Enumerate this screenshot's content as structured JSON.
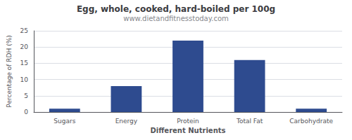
{
  "chart_data": {
    "type": "bar",
    "title": "Egg, whole, cooked, hard-boiled per 100g",
    "subtitle": "www.dietandfitnesstoday.com",
    "xlabel": "Different Nutrients",
    "ylabel": "Percentage of RDH (%)",
    "categories": [
      "Sugars",
      "Energy",
      "Protein",
      "Total Fat",
      "Carbohydrate"
    ],
    "values": [
      1,
      8,
      22,
      16,
      1
    ],
    "color": "#2e4b8f",
    "ylim": [
      0,
      25
    ],
    "yticks": [
      0,
      5,
      10,
      15,
      20,
      25
    ],
    "grid": true
  }
}
